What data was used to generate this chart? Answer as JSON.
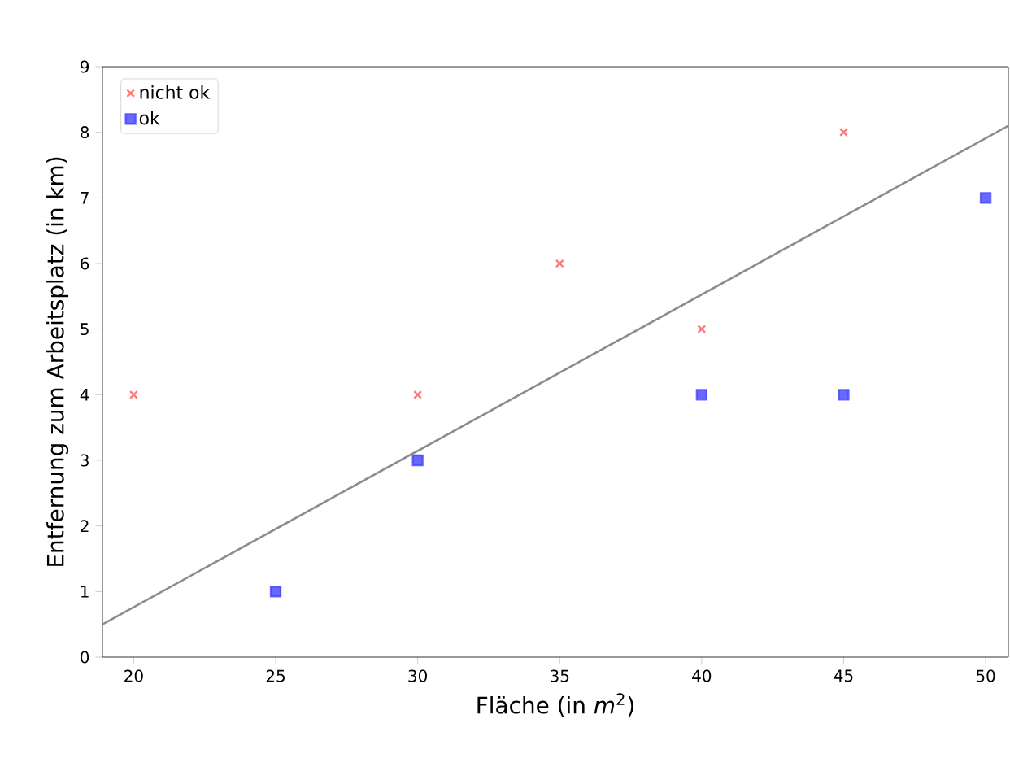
{
  "chart_data": {
    "type": "scatter",
    "xlabel": "Fläche (in *m*$^{2}$)",
    "ylabel": "Entfernung zum Arbeitsplatz (in km)",
    "xlim": [
      18.9,
      50.8
    ],
    "ylim": [
      0,
      9
    ],
    "xticks": [
      20,
      25,
      30,
      35,
      40,
      45,
      50
    ],
    "yticks": [
      0,
      1,
      2,
      3,
      4,
      5,
      6,
      7,
      8,
      9
    ],
    "legend": "top left",
    "grid": false,
    "series": [
      {
        "name": "nicht ok",
        "color": "#ff5555",
        "marker": "cross",
        "x": [
          20,
          30,
          35,
          40,
          45
        ],
        "values": [
          4,
          4,
          6,
          5,
          8
        ]
      },
      {
        "name": "ok",
        "color": "#4444ff",
        "marker": "square",
        "x": [
          25,
          30,
          40,
          45,
          50
        ],
        "values": [
          1,
          3,
          4,
          4,
          7
        ]
      },
      {
        "type": "line",
        "color": "#8c8c8c",
        "marker": "none",
        "x": [
          18.9,
          50.8
        ],
        "values": [
          0.5,
          8.1
        ]
      }
    ]
  }
}
